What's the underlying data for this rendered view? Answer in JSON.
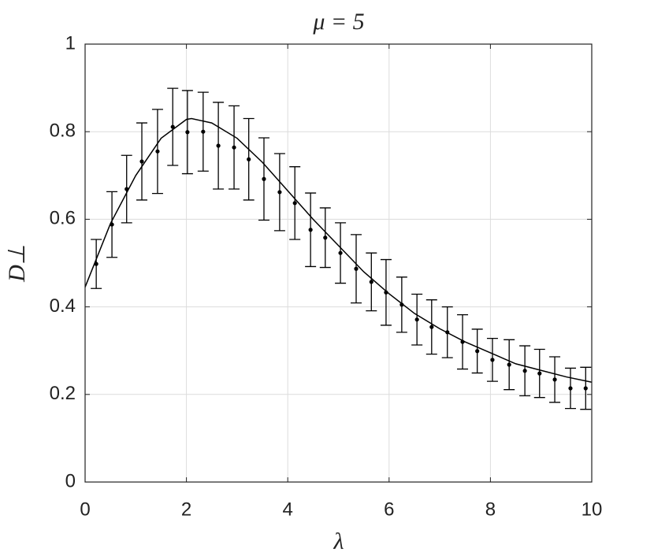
{
  "chart_data": {
    "type": "errorbar",
    "title": "μ = 5",
    "xlabel": "λ",
    "ylabel": "D⊥",
    "x": [
      0.22,
      0.53,
      0.82,
      1.12,
      1.43,
      1.73,
      2.02,
      2.33,
      2.63,
      2.94,
      3.23,
      3.53,
      3.84,
      4.14,
      4.45,
      4.74,
      5.04,
      5.35,
      5.65,
      5.94,
      6.25,
      6.55,
      6.84,
      7.15,
      7.45,
      7.74,
      8.04,
      8.37,
      8.68,
      8.97,
      9.27,
      9.58,
      9.88
    ],
    "values": [
      0.498,
      0.588,
      0.669,
      0.732,
      0.755,
      0.811,
      0.799,
      0.8,
      0.768,
      0.764,
      0.737,
      0.692,
      0.662,
      0.637,
      0.576,
      0.558,
      0.523,
      0.487,
      0.457,
      0.433,
      0.405,
      0.371,
      0.354,
      0.342,
      0.32,
      0.299,
      0.279,
      0.268,
      0.254,
      0.248,
      0.234,
      0.214,
      0.214
    ],
    "errors": [
      0.056,
      0.075,
      0.077,
      0.088,
      0.096,
      0.088,
      0.095,
      0.09,
      0.099,
      0.095,
      0.093,
      0.094,
      0.088,
      0.083,
      0.084,
      0.068,
      0.069,
      0.078,
      0.066,
      0.075,
      0.063,
      0.058,
      0.062,
      0.058,
      0.062,
      0.05,
      0.049,
      0.057,
      0.057,
      0.055,
      0.052,
      0.046,
      0.048
    ],
    "color": "#000000",
    "fit": {
      "x": [
        0,
        0.5,
        1,
        1.5,
        2,
        2.1,
        2.5,
        3,
        3.5,
        4,
        4.5,
        5,
        5.5,
        6,
        6.5,
        7,
        7.5,
        8,
        8.5,
        9,
        9.5,
        10
      ],
      "values": [
        0.445,
        0.59,
        0.7,
        0.785,
        0.828,
        0.83,
        0.82,
        0.785,
        0.73,
        0.665,
        0.6,
        0.54,
        0.48,
        0.43,
        0.385,
        0.35,
        0.32,
        0.295,
        0.27,
        0.255,
        0.24,
        0.228
      ]
    },
    "xlim": [
      0,
      10
    ],
    "ylim": [
      0,
      1
    ],
    "xticks": [
      0,
      2,
      4,
      6,
      8,
      10
    ],
    "yticks": [
      0,
      0.2,
      0.4,
      0.6,
      0.8,
      1
    ],
    "grid": true
  }
}
